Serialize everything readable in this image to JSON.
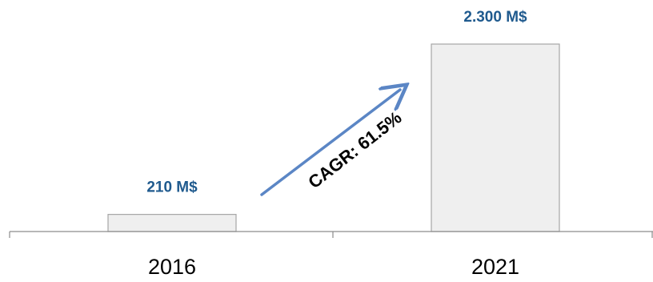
{
  "chart_data": {
    "type": "bar",
    "categories": [
      "2016",
      "2021"
    ],
    "values": [
      210,
      2300
    ],
    "value_labels": [
      "210 M$",
      "2.300 M$"
    ],
    "ylim": [
      0,
      2300
    ],
    "grid": false,
    "legend": "none",
    "annotation": {
      "text": "CAGR: 61.5%",
      "kind": "arrow-up-right"
    },
    "colors": {
      "bar_fill": "#efefef",
      "bar_stroke": "#a6a6a6",
      "axis": "#8c8c8c",
      "value_label": "#1f5a8e",
      "arrow": "#5b86c5"
    }
  }
}
